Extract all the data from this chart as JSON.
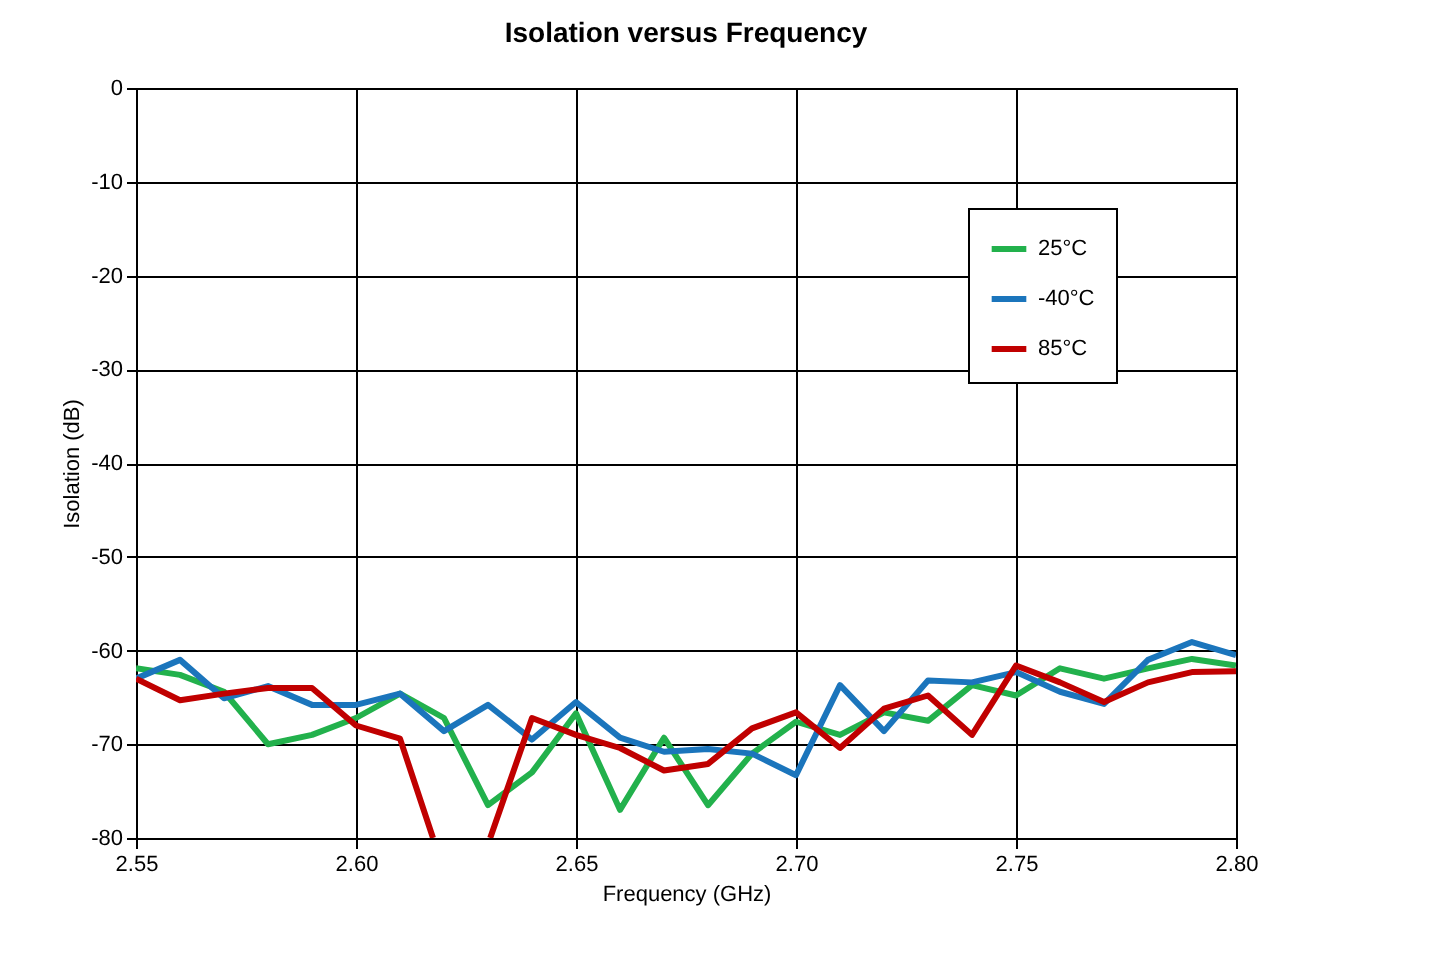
{
  "chart_data": {
    "type": "line",
    "title": "Isolation versus Frequency",
    "xlabel": "Frequency (GHz)",
    "ylabel": "Isolation (dB)",
    "xlim": [
      2.55,
      2.8
    ],
    "xticks": [
      2.55,
      {
        "value": 2.6,
        "label": "2.60"
      },
      2.65,
      {
        "value": 2.7,
        "label": "2.70"
      },
      2.75,
      {
        "value": 2.8,
        "label": "2.80"
      }
    ],
    "ylim": [
      -80,
      0
    ],
    "yticks": [
      0,
      -10,
      -20,
      -30,
      -40,
      -50,
      -60,
      -70,
      -80
    ],
    "grid": true,
    "legend": "top right",
    "line_style": "solid",
    "marker": "none",
    "x": [
      2.55,
      2.56,
      2.57,
      2.58,
      2.59,
      2.6,
      2.61,
      2.62,
      2.63,
      2.64,
      2.65,
      2.66,
      2.67,
      2.68,
      2.69,
      2.7,
      2.71,
      2.72,
      2.73,
      2.74,
      2.75,
      2.76,
      2.77,
      2.78,
      2.79,
      2.8
    ],
    "series": [
      {
        "name": "25°C",
        "color": "#22b14c",
        "values": [
          -61.9,
          -62.6,
          -64.4,
          -70,
          -69,
          -67.2,
          -64.6,
          -67.2,
          -76.5,
          -73,
          -66.7,
          -77,
          -69.3,
          -76.5,
          -71,
          -67.6,
          -69,
          -66.6,
          -67.5,
          -63.7,
          -64.8,
          -61.9,
          -63,
          -61.9,
          -60.9,
          -61.6
        ]
      },
      {
        "name": "-40°C",
        "color": "#1b75bc",
        "values": [
          -63,
          -61,
          -65.1,
          -63.8,
          -65.8,
          -65.8,
          -64.6,
          -68.6,
          -65.8,
          -69.5,
          -65.5,
          -69.3,
          -70.8,
          -70.5,
          -71,
          -73.3,
          -63.7,
          -68.6,
          -63.2,
          -63.4,
          -62.3,
          -64.4,
          -65.7,
          -61,
          -59.1,
          -60.5
        ]
      },
      {
        "name": "85°C",
        "color": "#c00000",
        "x": [
          2.55,
          2.56,
          2.57,
          2.58,
          2.59,
          2.6,
          2.61,
          2.6175,
          2.624,
          2.6305,
          2.64,
          2.65,
          2.66,
          2.67,
          2.68,
          2.69,
          2.7,
          2.71,
          2.72,
          2.73,
          2.74,
          2.75,
          2.76,
          2.77,
          2.78,
          2.79,
          2.8
        ],
        "values": [
          -63,
          -65.3,
          -64.6,
          -64,
          -64,
          -68,
          -69.4,
          -80,
          null,
          -80,
          -67.2,
          -69,
          -70.4,
          -72.8,
          -72.1,
          -68.3,
          -66.6,
          -70.4,
          -66.2,
          -64.8,
          -69,
          -61.6,
          -63.4,
          -65.5,
          -63.4,
          -62.3,
          -62.2
        ]
      }
    ]
  }
}
